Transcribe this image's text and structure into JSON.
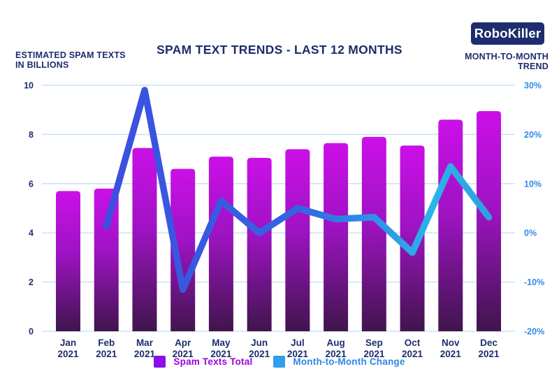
{
  "header": {
    "left_label_line1": "ESTIMATED SPAM TEXTS",
    "left_label_line2": "IN BILLIONS",
    "title": "SPAM TEXT TRENDS - LAST 12 MONTHS",
    "logo_text": "RoboKiller",
    "right_label_line1": "MONTH-TO-MONTH",
    "right_label_line2": "TREND"
  },
  "legend": {
    "bars_label": "Spam Texts Total",
    "line_label": "Month-to-Month Change"
  },
  "colors": {
    "background": "#ffffff",
    "navy": "#1d2d6e",
    "axis_blue": "#2f8ce8",
    "gridline": "#c5e3f8",
    "bar_gradient": [
      "#cb10e8",
      "#9d13c2",
      "#40154c"
    ],
    "line_gradient": [
      "#3c4fe0",
      "#3464e2",
      "#2e8ee6",
      "#2ab4e8",
      "#2fa0dc"
    ],
    "legend_bar_swatch": "#8a10ea",
    "legend_bar_text": "#9c00e0",
    "legend_line_swatch": "#2f9fea",
    "legend_line_text": "#2e86e6",
    "logo_bg": "#1d2d6e",
    "logo_fg": "#ffffff"
  },
  "chart_data": {
    "type": "bar+line combo",
    "title": "SPAM TEXT TRENDS - LAST 12 MONTHS",
    "categories": [
      "Jan 2021",
      "Feb 2021",
      "Mar 2021",
      "Apr 2021",
      "May 2021",
      "Jun 2021",
      "Jul 2021",
      "Aug 2021",
      "Sep 2021",
      "Oct 2021",
      "Nov 2021",
      "Dec 2021"
    ],
    "series": [
      {
        "name": "Spam Texts Total",
        "type": "bar",
        "axis": "left",
        "unit": "billions",
        "values": [
          5.7,
          5.8,
          7.45,
          6.6,
          7.1,
          7.05,
          7.4,
          7.65,
          7.9,
          7.55,
          8.6,
          8.95
        ]
      },
      {
        "name": "Month-to-Month Change",
        "type": "line",
        "axis": "right",
        "unit": "%",
        "values": [
          null,
          1.3,
          29,
          -11.5,
          6.5,
          0,
          5,
          2.8,
          3.2,
          -4,
          13.5,
          3.2
        ]
      }
    ],
    "left_axis": {
      "label": "ESTIMATED SPAM TEXTS IN BILLIONS",
      "range": [
        0,
        10
      ],
      "ticks": [
        "10",
        "8",
        "6",
        "4",
        "2",
        "0"
      ]
    },
    "right_axis": {
      "label": "MONTH-TO-MONTH TREND",
      "range": [
        -20,
        30
      ],
      "ticks": [
        "30%",
        "20%",
        "10%",
        "0%",
        "-10%",
        "-20%"
      ]
    },
    "grid": true,
    "legend_position": "bottom"
  }
}
